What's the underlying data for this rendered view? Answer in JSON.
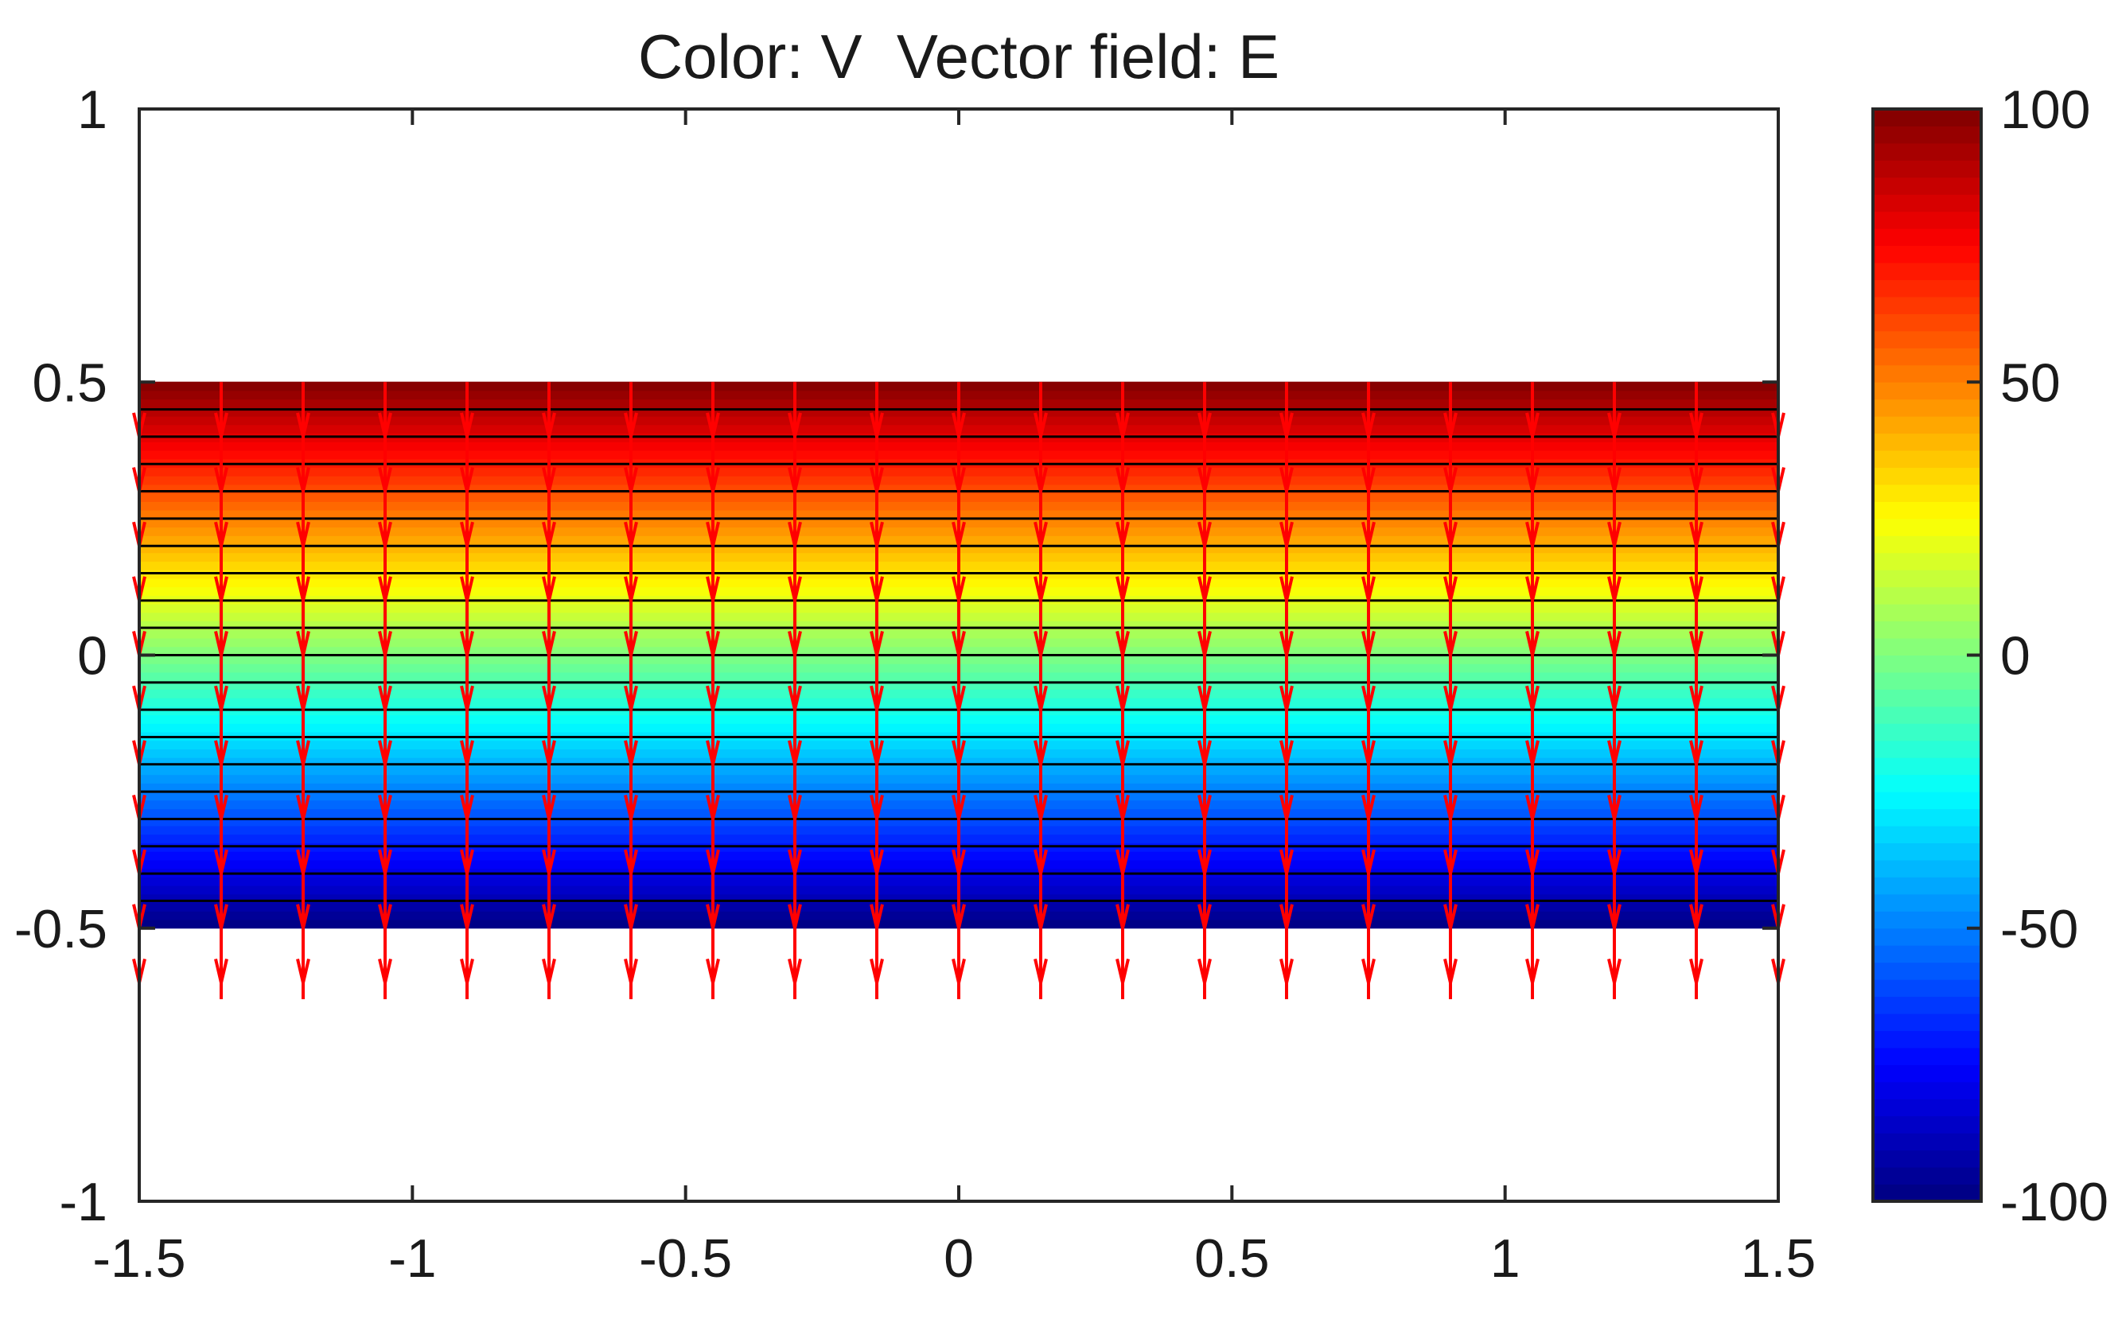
{
  "chart_data": {
    "type": "heatmap",
    "title": "Color: V  Vector field: E",
    "xlabel": "",
    "ylabel": "",
    "xlim": [
      -1.5,
      1.5
    ],
    "ylim": [
      -1,
      1
    ],
    "x_ticks": [
      -1.5,
      -1,
      -0.5,
      0,
      0.5,
      1,
      1.5
    ],
    "x_tick_labels": [
      "-1.5",
      "-1",
      "-0.5",
      "0",
      "0.5",
      "1",
      "1.5"
    ],
    "y_ticks": [
      -1,
      -0.5,
      0,
      0.5,
      1
    ],
    "y_tick_labels": [
      "-1",
      "-0.5",
      "0",
      "0.5",
      "1"
    ],
    "field_region": {
      "x": [
        -1.5,
        1.5
      ],
      "y": [
        -0.5,
        0.5
      ]
    },
    "potential": {
      "value_at_top": 100,
      "value_at_bottom": -100,
      "variation": "linear in y"
    },
    "contour_levels": [
      -90,
      -80,
      -70,
      -60,
      -50,
      -40,
      -30,
      -20,
      -10,
      0,
      10,
      20,
      30,
      40,
      50,
      60,
      70,
      80,
      90
    ],
    "vector_field": {
      "name": "E",
      "direction": "down",
      "x_positions": [
        -1.5,
        -1.35,
        -1.2,
        -1.05,
        -0.9,
        -0.75,
        -0.6,
        -0.45,
        -0.3,
        -0.15,
        0,
        0.15,
        0.3,
        0.45,
        0.6,
        0.75,
        0.9,
        1.05,
        1.2,
        1.35,
        1.5
      ],
      "y_start": 0.5,
      "y_end": -0.63,
      "head_spacing": 0.1,
      "color": "#ff0000"
    },
    "colorbar": {
      "range": [
        -100,
        100
      ],
      "ticks": [
        -100,
        -50,
        0,
        50,
        100
      ],
      "tick_labels": [
        "-100",
        "-50",
        "0",
        "50",
        "100"
      ],
      "levels": 64,
      "colormap": "jet"
    },
    "grid": false
  },
  "colors": {
    "axis": "#262626",
    "contour": "#000000",
    "arrow": "#ff0000"
  }
}
